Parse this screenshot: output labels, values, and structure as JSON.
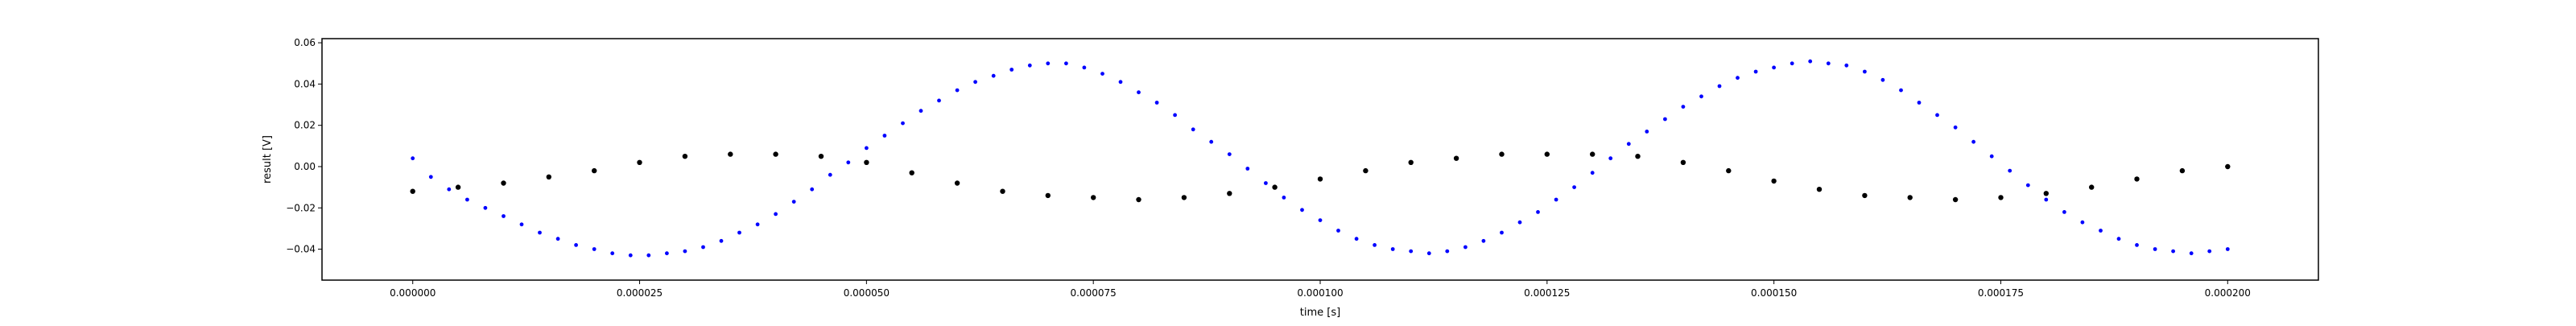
{
  "chart_data": {
    "type": "scatter",
    "title": "",
    "xlabel": "time [s]",
    "ylabel": "result [V]",
    "xlim": [
      -1e-05,
      0.00021
    ],
    "ylim": [
      -0.055,
      0.062
    ],
    "xticks": [
      0,
      2.5e-05,
      5e-05,
      7.5e-05,
      0.0001,
      0.000125,
      0.00015,
      0.000175,
      0.0002
    ],
    "xtick_labels": [
      "0.000000",
      "0.000025",
      "0.000050",
      "0.000075",
      "0.000100",
      "0.000125",
      "0.000150",
      "0.000175",
      "0.000200"
    ],
    "yticks": [
      -0.04,
      -0.02,
      0.0,
      0.02,
      0.04,
      0.06
    ],
    "ytick_labels": [
      "−0.04",
      "−0.02",
      "0.00",
      "0.02",
      "0.04",
      "0.06"
    ],
    "grid": false,
    "legend": "none",
    "series": [
      {
        "color": "#0000ff",
        "marker": "dot",
        "points": [
          [
            0.0,
            0.004
          ],
          [
            2e-06,
            -0.005
          ],
          [
            4e-06,
            -0.011
          ],
          [
            6e-06,
            -0.016
          ],
          [
            8e-06,
            -0.02
          ],
          [
            1e-05,
            -0.024
          ],
          [
            1.2e-05,
            -0.028
          ],
          [
            1.4e-05,
            -0.032
          ],
          [
            1.6e-05,
            -0.035
          ],
          [
            1.8e-05,
            -0.038
          ],
          [
            2e-05,
            -0.04
          ],
          [
            2.2e-05,
            -0.042
          ],
          [
            2.4e-05,
            -0.043
          ],
          [
            2.6e-05,
            -0.043
          ],
          [
            2.8e-05,
            -0.042
          ],
          [
            3e-05,
            -0.041
          ],
          [
            3.2e-05,
            -0.039
          ],
          [
            3.4e-05,
            -0.036
          ],
          [
            3.6e-05,
            -0.032
          ],
          [
            3.8e-05,
            -0.028
          ],
          [
            4e-05,
            -0.023
          ],
          [
            4.2e-05,
            -0.017
          ],
          [
            4.4e-05,
            -0.011
          ],
          [
            4.6e-05,
            -0.004
          ],
          [
            4.8e-05,
            0.002
          ],
          [
            5e-05,
            0.009
          ],
          [
            5.2e-05,
            0.015
          ],
          [
            5.4e-05,
            0.021
          ],
          [
            5.6e-05,
            0.027
          ],
          [
            5.8e-05,
            0.032
          ],
          [
            6e-05,
            0.037
          ],
          [
            6.2e-05,
            0.041
          ],
          [
            6.4e-05,
            0.044
          ],
          [
            6.6e-05,
            0.047
          ],
          [
            6.8e-05,
            0.049
          ],
          [
            7e-05,
            0.05
          ],
          [
            7.2e-05,
            0.05
          ],
          [
            7.4e-05,
            0.048
          ],
          [
            7.6e-05,
            0.045
          ],
          [
            7.8e-05,
            0.041
          ],
          [
            8e-05,
            0.036
          ],
          [
            8.2e-05,
            0.031
          ],
          [
            8.4e-05,
            0.025
          ],
          [
            8.6e-05,
            0.018
          ],
          [
            8.8e-05,
            0.012
          ],
          [
            9e-05,
            0.006
          ],
          [
            9.2e-05,
            -0.001
          ],
          [
            9.4e-05,
            -0.008
          ],
          [
            9.6e-05,
            -0.015
          ],
          [
            9.8e-05,
            -0.021
          ],
          [
            0.0001,
            -0.026
          ],
          [
            0.000102,
            -0.031
          ],
          [
            0.000104,
            -0.035
          ],
          [
            0.000106,
            -0.038
          ],
          [
            0.000108,
            -0.04
          ],
          [
            0.00011,
            -0.041
          ],
          [
            0.000112,
            -0.042
          ],
          [
            0.000114,
            -0.041
          ],
          [
            0.000116,
            -0.039
          ],
          [
            0.000118,
            -0.036
          ],
          [
            0.00012,
            -0.032
          ],
          [
            0.000122,
            -0.027
          ],
          [
            0.000124,
            -0.022
          ],
          [
            0.000126,
            -0.016
          ],
          [
            0.000128,
            -0.01
          ],
          [
            0.00013,
            -0.003
          ],
          [
            0.000132,
            0.004
          ],
          [
            0.000134,
            0.011
          ],
          [
            0.000136,
            0.017
          ],
          [
            0.000138,
            0.023
          ],
          [
            0.00014,
            0.029
          ],
          [
            0.000142,
            0.034
          ],
          [
            0.000144,
            0.039
          ],
          [
            0.000146,
            0.043
          ],
          [
            0.000148,
            0.046
          ],
          [
            0.00015,
            0.048
          ],
          [
            0.000152,
            0.05
          ],
          [
            0.000154,
            0.051
          ],
          [
            0.000156,
            0.05
          ],
          [
            0.000158,
            0.049
          ],
          [
            0.00016,
            0.046
          ],
          [
            0.000162,
            0.042
          ],
          [
            0.000164,
            0.037
          ],
          [
            0.000166,
            0.031
          ],
          [
            0.000168,
            0.025
          ],
          [
            0.00017,
            0.019
          ],
          [
            0.000172,
            0.012
          ],
          [
            0.000174,
            0.005
          ],
          [
            0.000176,
            -0.002
          ],
          [
            0.000178,
            -0.009
          ],
          [
            0.00018,
            -0.016
          ],
          [
            0.000182,
            -0.022
          ],
          [
            0.000184,
            -0.027
          ],
          [
            0.000186,
            -0.031
          ],
          [
            0.000188,
            -0.035
          ],
          [
            0.00019,
            -0.038
          ],
          [
            0.000192,
            -0.04
          ],
          [
            0.000194,
            -0.041
          ],
          [
            0.000196,
            -0.042
          ],
          [
            0.000198,
            -0.041
          ],
          [
            0.0002,
            -0.04
          ]
        ]
      },
      {
        "color": "#000000",
        "marker": "dot",
        "points": [
          [
            0.0,
            -0.012
          ],
          [
            5e-06,
            -0.01
          ],
          [
            1e-05,
            -0.008
          ],
          [
            1.5e-05,
            -0.005
          ],
          [
            2e-05,
            -0.002
          ],
          [
            2.5e-05,
            0.002
          ],
          [
            3e-05,
            0.005
          ],
          [
            3.5e-05,
            0.006
          ],
          [
            4e-05,
            0.006
          ],
          [
            4.5e-05,
            0.005
          ],
          [
            5e-05,
            0.002
          ],
          [
            5.5e-05,
            -0.003
          ],
          [
            6e-05,
            -0.008
          ],
          [
            6.5e-05,
            -0.012
          ],
          [
            7e-05,
            -0.014
          ],
          [
            7.5e-05,
            -0.015
          ],
          [
            8e-05,
            -0.016
          ],
          [
            8.5e-05,
            -0.015
          ],
          [
            9e-05,
            -0.013
          ],
          [
            9.5e-05,
            -0.01
          ],
          [
            0.0001,
            -0.006
          ],
          [
            0.000105,
            -0.002
          ],
          [
            0.00011,
            0.002
          ],
          [
            0.000115,
            0.004
          ],
          [
            0.00012,
            0.006
          ],
          [
            0.000125,
            0.006
          ],
          [
            0.00013,
            0.006
          ],
          [
            0.000135,
            0.005
          ],
          [
            0.00014,
            0.002
          ],
          [
            0.000145,
            -0.002
          ],
          [
            0.00015,
            -0.007
          ],
          [
            0.000155,
            -0.011
          ],
          [
            0.00016,
            -0.014
          ],
          [
            0.000165,
            -0.015
          ],
          [
            0.00017,
            -0.016
          ],
          [
            0.000175,
            -0.015
          ],
          [
            0.00018,
            -0.013
          ],
          [
            0.000185,
            -0.01
          ],
          [
            0.00019,
            -0.006
          ],
          [
            0.000195,
            -0.002
          ],
          [
            0.0002,
            0.0
          ]
        ]
      }
    ]
  }
}
